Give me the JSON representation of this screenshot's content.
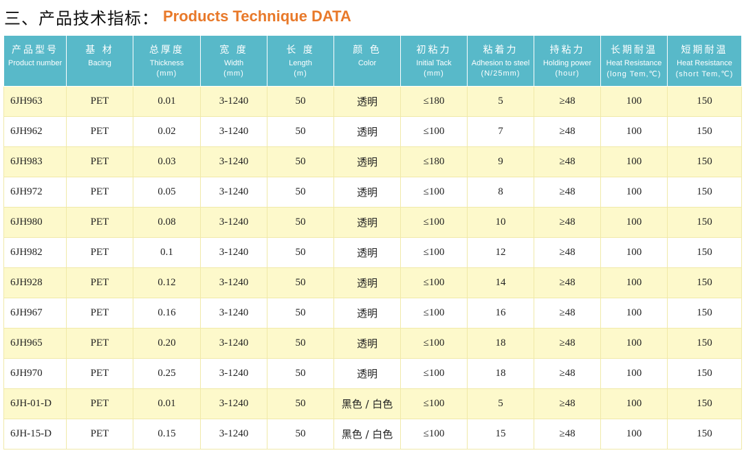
{
  "title": {
    "cn": "三、产品技术指标：",
    "en": "Products Technique DATA"
  },
  "headers": [
    {
      "cn": "产品型号",
      "en": "Product number",
      "unit": ""
    },
    {
      "cn": "基 材",
      "en": "Bacing",
      "unit": ""
    },
    {
      "cn": "总厚度",
      "en": "Thickness",
      "unit": "(mm)"
    },
    {
      "cn": "宽 度",
      "en": "Width",
      "unit": "(mm)"
    },
    {
      "cn": "长 度",
      "en": "Length",
      "unit": "(m)"
    },
    {
      "cn": "颜 色",
      "en": "Color",
      "unit": ""
    },
    {
      "cn": "初粘力",
      "en": "Initial Tack",
      "unit": "(mm)"
    },
    {
      "cn": "粘着力",
      "en": "Adhesion to steel",
      "unit": "(N/25mm)"
    },
    {
      "cn": "持粘力",
      "en": "Holding power",
      "unit": "(hour)"
    },
    {
      "cn": "长期耐温",
      "en": "Heat Resistance",
      "unit": "(long Tem,℃)"
    },
    {
      "cn": "短期耐温",
      "en": "Heat Resistance",
      "unit": "(short Tem,℃)"
    }
  ],
  "rows": [
    [
      "6JH963",
      "PET",
      "0.01",
      "3-1240",
      "50",
      "透明",
      "≤180",
      "5",
      "≥48",
      "100",
      "150"
    ],
    [
      "6JH962",
      "PET",
      "0.02",
      "3-1240",
      "50",
      "透明",
      "≤100",
      "7",
      "≥48",
      "100",
      "150"
    ],
    [
      "6JH983",
      "PET",
      "0.03",
      "3-1240",
      "50",
      "透明",
      "≤180",
      "9",
      "≥48",
      "100",
      "150"
    ],
    [
      "6JH972",
      "PET",
      "0.05",
      "3-1240",
      "50",
      "透明",
      "≤100",
      "8",
      "≥48",
      "100",
      "150"
    ],
    [
      "6JH980",
      "PET",
      "0.08",
      "3-1240",
      "50",
      "透明",
      "≤100",
      "10",
      "≥48",
      "100",
      "150"
    ],
    [
      "6JH982",
      "PET",
      "0.1",
      "3-1240",
      "50",
      "透明",
      "≤100",
      "12",
      "≥48",
      "100",
      "150"
    ],
    [
      "6JH928",
      "PET",
      "0.12",
      "3-1240",
      "50",
      "透明",
      "≤100",
      "14",
      "≥48",
      "100",
      "150"
    ],
    [
      "6JH967",
      "PET",
      "0.16",
      "3-1240",
      "50",
      "透明",
      "≤100",
      "16",
      "≥48",
      "100",
      "150"
    ],
    [
      "6JH965",
      "PET",
      "0.20",
      "3-1240",
      "50",
      "透明",
      "≤100",
      "18",
      "≥48",
      "100",
      "150"
    ],
    [
      "6JH970",
      "PET",
      "0.25",
      "3-1240",
      "50",
      "透明",
      "≤100",
      "18",
      "≥48",
      "100",
      "150"
    ],
    [
      "6JH-01-D",
      "PET",
      "0.01",
      "3-1240",
      "50",
      "黑色 / 白色",
      "≤100",
      "5",
      "≥48",
      "100",
      "150"
    ],
    [
      "6JH-15-D",
      "PET",
      "0.15",
      "3-1240",
      "50",
      "黑色 / 白色",
      "≤100",
      "15",
      "≥48",
      "100",
      "150"
    ]
  ],
  "colors": {
    "header_bg": "#58b9c9",
    "row_alt_bg": "#fdf9cb",
    "title_accent": "#e8792a"
  }
}
